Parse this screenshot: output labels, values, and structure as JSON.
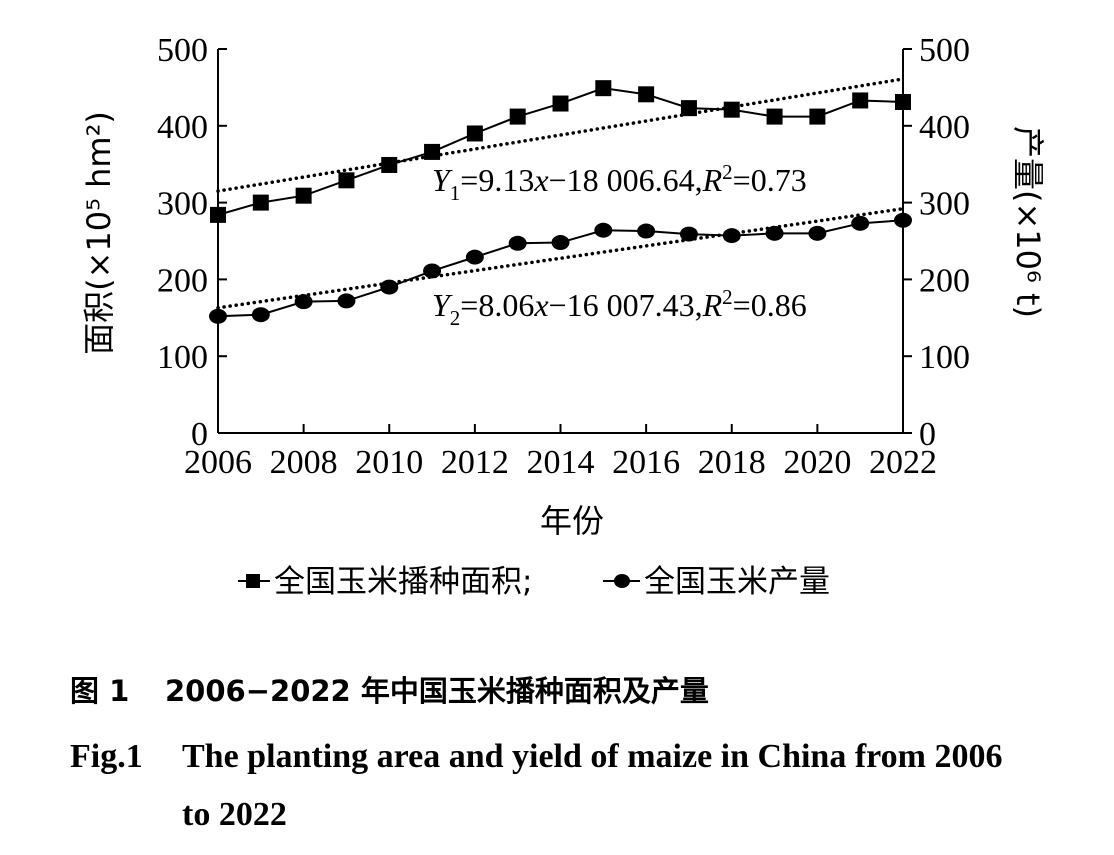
{
  "chart_data": {
    "type": "line",
    "x": [
      2006,
      2007,
      2008,
      2009,
      2010,
      2011,
      2012,
      2013,
      2014,
      2015,
      2016,
      2017,
      2018,
      2019,
      2020,
      2021,
      2022
    ],
    "series": [
      {
        "name": "全国玉米播种面积",
        "axis": "left",
        "marker": "square",
        "values": [
          284,
          300,
          309,
          329,
          349,
          366,
          390,
          412,
          429,
          449,
          441,
          423,
          421,
          412,
          412,
          433,
          431
        ]
      },
      {
        "name": "全国玉米产量",
        "axis": "right",
        "marker": "circle",
        "values": [
          152,
          154,
          171,
          172,
          190,
          211,
          229,
          247,
          248,
          264,
          263,
          259,
          257,
          260,
          260,
          273,
          277
        ]
      }
    ],
    "trendlines": [
      {
        "series": 0,
        "x": [
          2006,
          2022
        ],
        "y": [
          315,
          461
        ],
        "style": "dotted"
      },
      {
        "series": 1,
        "x": [
          2006,
          2022
        ],
        "y": [
          163,
          292
        ],
        "style": "dotted"
      }
    ],
    "xlim": [
      2006,
      2022
    ],
    "ylim_left": [
      0,
      500
    ],
    "ylim_right": [
      0,
      500
    ],
    "x_ticks": [
      "2006",
      "2008",
      "2010",
      "2012",
      "2014",
      "2016",
      "2018",
      "2020",
      "2022"
    ],
    "x_tick_values": [
      2006,
      2008,
      2010,
      2012,
      2014,
      2016,
      2018,
      2020,
      2022
    ],
    "y_ticks_left": [
      "0",
      "100",
      "200",
      "300",
      "400",
      "500"
    ],
    "y_ticks_right": [
      "0",
      "100",
      "200",
      "300",
      "400",
      "500"
    ],
    "y_tick_values": [
      0,
      100,
      200,
      300,
      400,
      500
    ],
    "xlabel": "年份",
    "ylabel_left": "面积(×10⁵ hm²)",
    "ylabel_right": "产量(×10⁶ t)",
    "equations": [
      "Y₁=9.13x−18 006.64,R²=0.73",
      "Y₂=8.06x−16 007.43,R²=0.86"
    ],
    "legend": [
      "全国玉米播种面积;",
      "全国玉米产量"
    ],
    "legend_position": "bottom",
    "grid": false
  },
  "caption": {
    "cn_number": "图 1",
    "cn_text": "2006−2022 年中国玉米播种面积及产量",
    "en_number": "Fig.1",
    "en_text_line1": "The planting area and yield of maize in China from 2006",
    "en_text_line2": "to 2022"
  }
}
